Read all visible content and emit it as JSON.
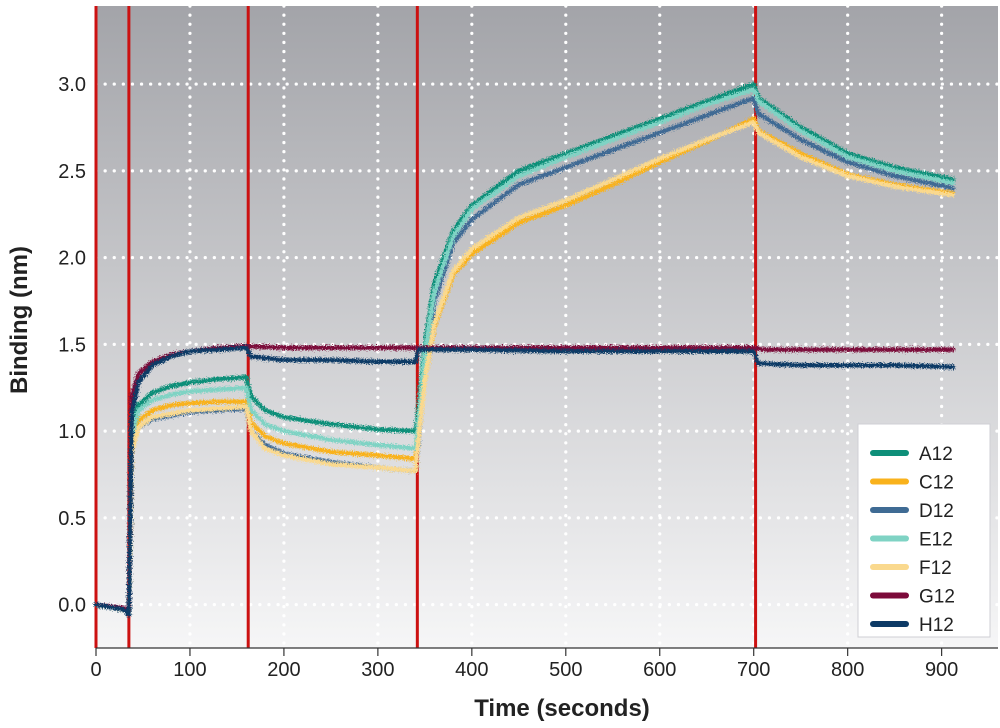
{
  "chart_data": {
    "type": "line",
    "title": "",
    "xlabel": "Time (seconds)",
    "ylabel": "Binding (nm)",
    "xlim": [
      0,
      960
    ],
    "ylim": [
      -0.25,
      3.45
    ],
    "xticks": [
      0,
      100,
      200,
      300,
      400,
      500,
      600,
      700,
      800,
      900
    ],
    "yticks": [
      0.0,
      0.5,
      1.0,
      1.5,
      2.0,
      2.5,
      3.0
    ],
    "ytick_labels": [
      "0.0",
      "0.5",
      "1.0",
      "1.5",
      "2.0",
      "2.5",
      "3.0"
    ],
    "grid": true,
    "legend_position": "bottom-right",
    "step_boundaries_x": [
      0,
      35,
      162,
      342,
      702
    ],
    "background_gradient": [
      "#a3a4a9",
      "#f6f6f7"
    ],
    "boundary_color": "#cc1111",
    "series": [
      {
        "name": "A12",
        "color": "#0e8f79",
        "points": [
          [
            0,
            0
          ],
          [
            30,
            -0.03
          ],
          [
            35,
            -0.05
          ],
          [
            38,
            1.0
          ],
          [
            45,
            1.15
          ],
          [
            60,
            1.22
          ],
          [
            80,
            1.26
          ],
          [
            100,
            1.28
          ],
          [
            130,
            1.3
          ],
          [
            160,
            1.31
          ],
          [
            165,
            1.2
          ],
          [
            180,
            1.12
          ],
          [
            200,
            1.08
          ],
          [
            250,
            1.04
          ],
          [
            300,
            1.01
          ],
          [
            340,
            1.0
          ],
          [
            343,
            1.12
          ],
          [
            350,
            1.5
          ],
          [
            360,
            1.85
          ],
          [
            380,
            2.15
          ],
          [
            400,
            2.3
          ],
          [
            450,
            2.5
          ],
          [
            500,
            2.6
          ],
          [
            550,
            2.7
          ],
          [
            600,
            2.8
          ],
          [
            650,
            2.9
          ],
          [
            700,
            3.0
          ],
          [
            705,
            2.92
          ],
          [
            750,
            2.75
          ],
          [
            800,
            2.6
          ],
          [
            850,
            2.52
          ],
          [
            912,
            2.45
          ]
        ]
      },
      {
        "name": "C12",
        "color": "#f9b21c",
        "points": [
          [
            0,
            0
          ],
          [
            30,
            -0.03
          ],
          [
            35,
            -0.05
          ],
          [
            38,
            0.9
          ],
          [
            45,
            1.06
          ],
          [
            60,
            1.12
          ],
          [
            80,
            1.15
          ],
          [
            100,
            1.16
          ],
          [
            130,
            1.17
          ],
          [
            160,
            1.17
          ],
          [
            165,
            1.05
          ],
          [
            180,
            0.97
          ],
          [
            200,
            0.93
          ],
          [
            250,
            0.88
          ],
          [
            300,
            0.86
          ],
          [
            340,
            0.84
          ],
          [
            343,
            0.98
          ],
          [
            350,
            1.3
          ],
          [
            360,
            1.6
          ],
          [
            380,
            1.9
          ],
          [
            400,
            2.02
          ],
          [
            450,
            2.2
          ],
          [
            500,
            2.3
          ],
          [
            550,
            2.42
          ],
          [
            600,
            2.55
          ],
          [
            650,
            2.67
          ],
          [
            700,
            2.8
          ],
          [
            705,
            2.73
          ],
          [
            750,
            2.6
          ],
          [
            800,
            2.48
          ],
          [
            850,
            2.42
          ],
          [
            912,
            2.37
          ]
        ]
      },
      {
        "name": "D12",
        "color": "#3f6b94",
        "points": [
          [
            0,
            0
          ],
          [
            30,
            -0.03
          ],
          [
            35,
            -0.05
          ],
          [
            38,
            0.95
          ],
          [
            45,
            1.02
          ],
          [
            60,
            1.07
          ],
          [
            80,
            1.09
          ],
          [
            100,
            1.11
          ],
          [
            130,
            1.12
          ],
          [
            160,
            1.13
          ],
          [
            165,
            1.0
          ],
          [
            180,
            0.92
          ],
          [
            200,
            0.87
          ],
          [
            250,
            0.82
          ],
          [
            300,
            0.79
          ],
          [
            340,
            0.77
          ],
          [
            343,
            0.92
          ],
          [
            350,
            1.35
          ],
          [
            360,
            1.75
          ],
          [
            380,
            2.08
          ],
          [
            400,
            2.22
          ],
          [
            450,
            2.42
          ],
          [
            500,
            2.52
          ],
          [
            550,
            2.62
          ],
          [
            600,
            2.72
          ],
          [
            650,
            2.82
          ],
          [
            700,
            2.92
          ],
          [
            705,
            2.83
          ],
          [
            750,
            2.68
          ],
          [
            800,
            2.55
          ],
          [
            850,
            2.47
          ],
          [
            912,
            2.4
          ]
        ]
      },
      {
        "name": "E12",
        "color": "#7fd3c4",
        "points": [
          [
            0,
            0
          ],
          [
            30,
            -0.03
          ],
          [
            35,
            -0.05
          ],
          [
            38,
            0.98
          ],
          [
            45,
            1.12
          ],
          [
            60,
            1.18
          ],
          [
            80,
            1.21
          ],
          [
            100,
            1.23
          ],
          [
            130,
            1.24
          ],
          [
            160,
            1.25
          ],
          [
            165,
            1.12
          ],
          [
            180,
            1.04
          ],
          [
            200,
            1.0
          ],
          [
            250,
            0.95
          ],
          [
            300,
            0.92
          ],
          [
            340,
            0.9
          ],
          [
            343,
            1.05
          ],
          [
            350,
            1.45
          ],
          [
            360,
            1.8
          ],
          [
            380,
            2.12
          ],
          [
            400,
            2.28
          ],
          [
            450,
            2.47
          ],
          [
            500,
            2.58
          ],
          [
            550,
            2.68
          ],
          [
            600,
            2.78
          ],
          [
            650,
            2.88
          ],
          [
            700,
            2.97
          ],
          [
            705,
            2.9
          ],
          [
            750,
            2.73
          ],
          [
            800,
            2.58
          ],
          [
            850,
            2.5
          ],
          [
            912,
            2.43
          ]
        ]
      },
      {
        "name": "F12",
        "color": "#fad98e",
        "points": [
          [
            0,
            0
          ],
          [
            30,
            -0.03
          ],
          [
            35,
            -0.05
          ],
          [
            38,
            0.88
          ],
          [
            45,
            1.02
          ],
          [
            60,
            1.08
          ],
          [
            80,
            1.1
          ],
          [
            100,
            1.12
          ],
          [
            130,
            1.13
          ],
          [
            160,
            1.14
          ],
          [
            165,
            1.0
          ],
          [
            180,
            0.9
          ],
          [
            200,
            0.86
          ],
          [
            250,
            0.81
          ],
          [
            300,
            0.79
          ],
          [
            340,
            0.77
          ],
          [
            343,
            0.95
          ],
          [
            350,
            1.3
          ],
          [
            360,
            1.62
          ],
          [
            380,
            1.92
          ],
          [
            400,
            2.05
          ],
          [
            450,
            2.23
          ],
          [
            500,
            2.33
          ],
          [
            550,
            2.45
          ],
          [
            600,
            2.57
          ],
          [
            650,
            2.68
          ],
          [
            700,
            2.78
          ],
          [
            705,
            2.72
          ],
          [
            750,
            2.58
          ],
          [
            800,
            2.47
          ],
          [
            850,
            2.41
          ],
          [
            912,
            2.36
          ]
        ]
      },
      {
        "name": "G12",
        "color": "#7c0a3a",
        "points": [
          [
            0,
            0
          ],
          [
            30,
            -0.02
          ],
          [
            35,
            -0.04
          ],
          [
            38,
            1.2
          ],
          [
            45,
            1.33
          ],
          [
            60,
            1.4
          ],
          [
            80,
            1.44
          ],
          [
            100,
            1.46
          ],
          [
            130,
            1.48
          ],
          [
            160,
            1.49
          ],
          [
            200,
            1.48
          ],
          [
            250,
            1.48
          ],
          [
            300,
            1.48
          ],
          [
            340,
            1.48
          ],
          [
            400,
            1.48
          ],
          [
            500,
            1.48
          ],
          [
            600,
            1.48
          ],
          [
            700,
            1.48
          ],
          [
            710,
            1.47
          ],
          [
            800,
            1.47
          ],
          [
            912,
            1.47
          ]
        ]
      },
      {
        "name": "H12",
        "color": "#0d3a66",
        "points": [
          [
            0,
            0
          ],
          [
            30,
            -0.03
          ],
          [
            35,
            -0.06
          ],
          [
            38,
            1.1
          ],
          [
            45,
            1.28
          ],
          [
            60,
            1.38
          ],
          [
            80,
            1.43
          ],
          [
            100,
            1.46
          ],
          [
            130,
            1.47
          ],
          [
            160,
            1.48
          ],
          [
            165,
            1.43
          ],
          [
            200,
            1.41
          ],
          [
            250,
            1.41
          ],
          [
            300,
            1.4
          ],
          [
            340,
            1.4
          ],
          [
            343,
            1.47
          ],
          [
            400,
            1.47
          ],
          [
            500,
            1.46
          ],
          [
            600,
            1.46
          ],
          [
            700,
            1.46
          ],
          [
            705,
            1.39
          ],
          [
            750,
            1.38
          ],
          [
            800,
            1.38
          ],
          [
            850,
            1.38
          ],
          [
            912,
            1.37
          ]
        ]
      }
    ]
  }
}
